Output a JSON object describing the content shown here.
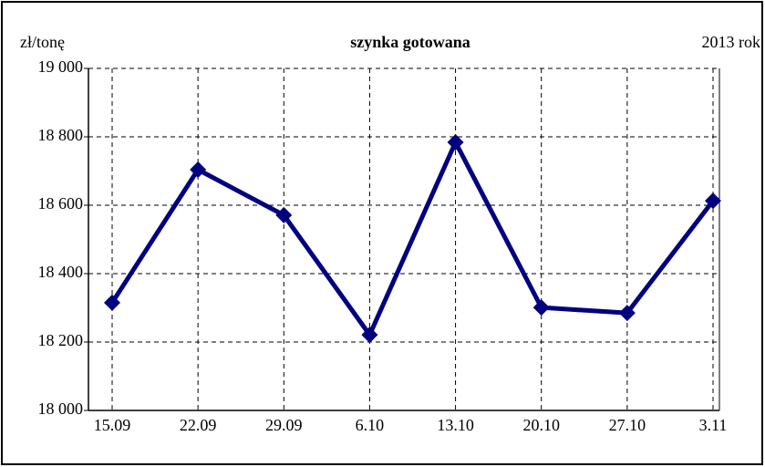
{
  "chart_data": {
    "type": "line",
    "title": "szynka gotowana",
    "y_label": "zł/tonę",
    "annotation": "2013 rok",
    "categories": [
      "15.09",
      "22.09",
      "29.09",
      "6.10",
      "13.10",
      "20.10",
      "27.10",
      "3.11"
    ],
    "series": [
      {
        "name": "szynka gotowana",
        "color": "#000080",
        "values": [
          18315,
          18704,
          18571,
          18221,
          18784,
          18301,
          18285,
          18613
        ]
      }
    ],
    "ylim": [
      18000,
      19000
    ],
    "yticks": [
      {
        "value": 18000,
        "label": "18 000"
      },
      {
        "value": 18200,
        "label": "18 200"
      },
      {
        "value": 18400,
        "label": "18 400"
      },
      {
        "value": 18600,
        "label": "18 600"
      },
      {
        "value": 18800,
        "label": "18 800"
      },
      {
        "value": 19000,
        "label": "19 000"
      }
    ],
    "grid": true
  }
}
